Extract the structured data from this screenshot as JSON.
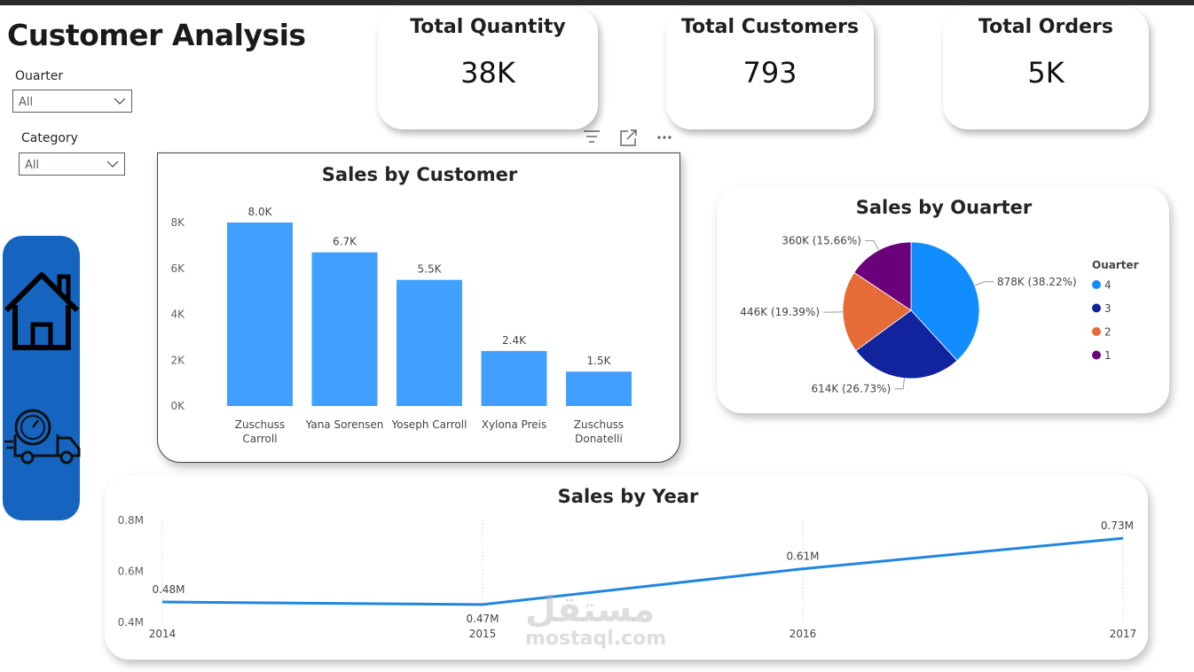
{
  "page": {
    "title": "Customer Analysis"
  },
  "slicers": [
    {
      "label": "Ouarter",
      "value": "All"
    },
    {
      "label": "Category",
      "value": "All"
    }
  ],
  "cards": [
    {
      "title": "Total Quantity",
      "value": "38K"
    },
    {
      "title": "Total Customers",
      "value": "793"
    },
    {
      "title": "Total Orders",
      "value": "5K"
    }
  ],
  "watermark": {
    "arabic": "مستقل",
    "latin": "mostaql.com"
  },
  "nav": {
    "icons": [
      "home-icon",
      "delivery-truck-icon"
    ]
  },
  "colors": {
    "bar": "#41a0ff",
    "line": "#1f86e0",
    "nav": "#1565c0",
    "q4": "#118dff",
    "q3": "#12239e",
    "q2": "#e66c37",
    "q1": "#6b007b"
  },
  "chart_data": [
    {
      "type": "bar",
      "title": "Sales by Customer",
      "categories": [
        "Zuschuss Carroll",
        "Yana Sorensen",
        "Yoseph Carroll",
        "Xylona Preis",
        "Zuschuss Donatelli"
      ],
      "category_lines": [
        [
          "Zuschuss",
          "Carroll"
        ],
        [
          "Yana Sorensen"
        ],
        [
          "Yoseph Carroll"
        ],
        [
          "Xylona Preis"
        ],
        [
          "Zuschuss",
          "Donatelli"
        ]
      ],
      "values": [
        8000,
        6700,
        5500,
        2400,
        1500
      ],
      "data_labels": [
        "8.0K",
        "6.7K",
        "5.5K",
        "2.4K",
        "1.5K"
      ],
      "yticks": [
        0,
        2000,
        4000,
        6000,
        8000
      ],
      "ytick_labels": [
        "0K",
        "2K",
        "4K",
        "6K",
        "8K"
      ],
      "ylim": [
        0,
        8000
      ],
      "grid": false
    },
    {
      "type": "pie",
      "title": "Sales by Ouarter",
      "legend_title": "Ouarter",
      "legend_position": "right",
      "slices": [
        {
          "name": "4",
          "value": 878,
          "label": "878K (38.22%)"
        },
        {
          "name": "3",
          "value": 614,
          "label": "614K (26.73%)"
        },
        {
          "name": "2",
          "value": 446,
          "label": "446K (19.39%)"
        },
        {
          "name": "1",
          "value": 360,
          "label": "360K (15.66%)"
        }
      ]
    },
    {
      "type": "line",
      "title": "Sales by Year",
      "x": [
        "2014",
        "2015",
        "2016",
        "2017"
      ],
      "values": [
        0.48,
        0.47,
        0.61,
        0.73
      ],
      "data_labels": [
        "0.48M",
        "0.47M",
        "0.61M",
        "0.73M"
      ],
      "yticks": [
        0.4,
        0.6,
        0.8
      ],
      "ytick_labels": [
        "0.4M",
        "0.6M",
        "0.8M"
      ],
      "ylim": [
        0.4,
        0.8
      ],
      "grid": "vertical-dotted"
    }
  ]
}
